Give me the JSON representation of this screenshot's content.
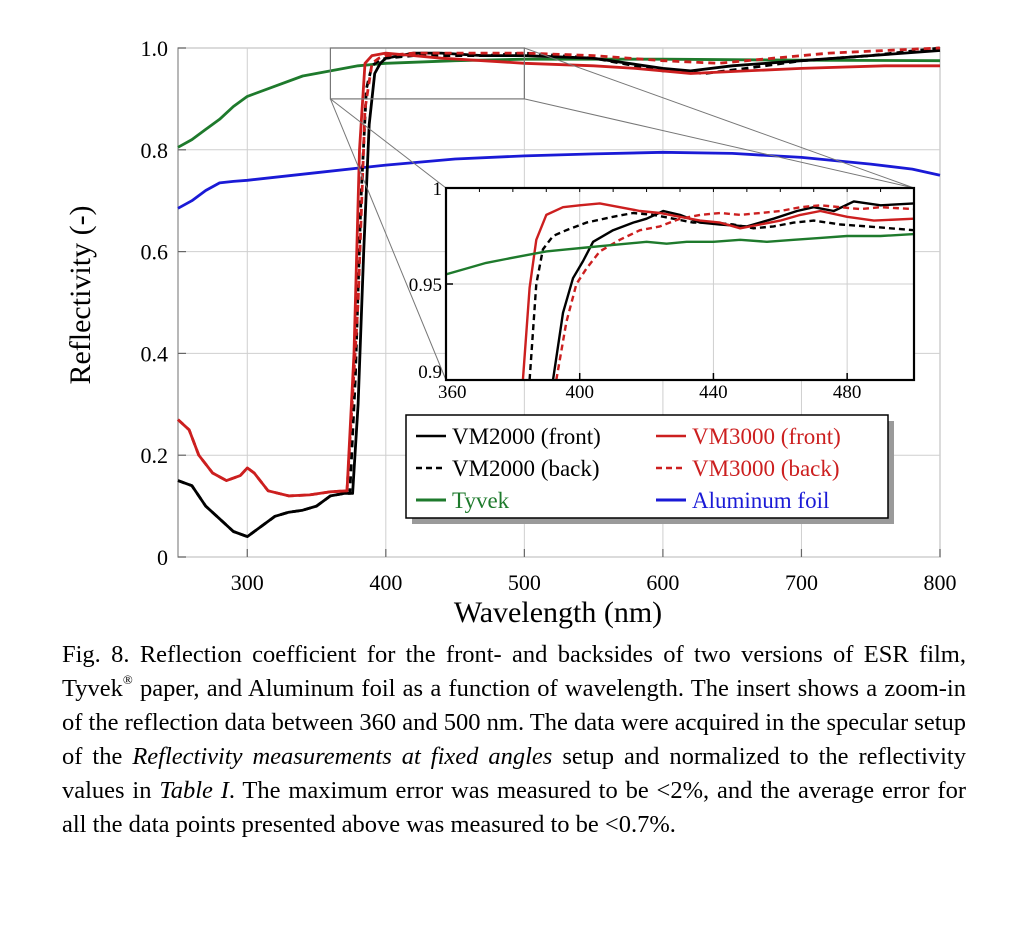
{
  "chart_data": {
    "type": "line",
    "xlabel": "Wavelength (nm)",
    "ylabel": "Reflectivity (-)",
    "xlim": [
      250,
      800
    ],
    "ylim": [
      0,
      1.0
    ],
    "x_ticks": [
      "300",
      "400",
      "500",
      "600",
      "700",
      "800"
    ],
    "y_ticks": [
      "0",
      "0.2",
      "0.4",
      "0.6",
      "0.8",
      "1.0"
    ],
    "grid": true,
    "legend_placement": "lower-right",
    "series": [
      {
        "name": "VM2000 (front)",
        "color": "#000000",
        "dash": "solid",
        "points": [
          [
            250,
            0.15
          ],
          [
            260,
            0.14
          ],
          [
            270,
            0.1
          ],
          [
            280,
            0.075
          ],
          [
            290,
            0.05
          ],
          [
            300,
            0.04
          ],
          [
            310,
            0.06
          ],
          [
            320,
            0.08
          ],
          [
            330,
            0.088
          ],
          [
            340,
            0.092
          ],
          [
            350,
            0.1
          ],
          [
            360,
            0.12
          ],
          [
            370,
            0.125
          ],
          [
            376,
            0.125
          ],
          [
            380,
            0.3
          ],
          [
            384,
            0.6
          ],
          [
            388,
            0.85
          ],
          [
            392,
            0.95
          ],
          [
            396,
            0.97
          ],
          [
            400,
            0.98
          ],
          [
            410,
            0.985
          ],
          [
            420,
            0.99
          ],
          [
            440,
            0.99
          ],
          [
            470,
            0.985
          ],
          [
            500,
            0.985
          ],
          [
            550,
            0.98
          ],
          [
            600,
            0.96
          ],
          [
            620,
            0.955
          ],
          [
            650,
            0.965
          ],
          [
            700,
            0.975
          ],
          [
            750,
            0.985
          ],
          [
            800,
            0.995
          ]
        ]
      },
      {
        "name": "VM2000 (back)",
        "color": "#000000",
        "dash": "dashed",
        "points": [
          [
            250,
            0.15
          ],
          [
            260,
            0.14
          ],
          [
            270,
            0.1
          ],
          [
            280,
            0.075
          ],
          [
            290,
            0.05
          ],
          [
            300,
            0.04
          ],
          [
            310,
            0.06
          ],
          [
            320,
            0.08
          ],
          [
            330,
            0.088
          ],
          [
            340,
            0.092
          ],
          [
            350,
            0.1
          ],
          [
            360,
            0.12
          ],
          [
            370,
            0.125
          ],
          [
            374,
            0.125
          ],
          [
            378,
            0.35
          ],
          [
            382,
            0.7
          ],
          [
            386,
            0.92
          ],
          [
            390,
            0.965
          ],
          [
            395,
            0.975
          ],
          [
            400,
            0.98
          ],
          [
            420,
            0.985
          ],
          [
            440,
            0.985
          ],
          [
            470,
            0.985
          ],
          [
            500,
            0.99
          ],
          [
            550,
            0.98
          ],
          [
            600,
            0.955
          ],
          [
            630,
            0.95
          ],
          [
            660,
            0.96
          ],
          [
            700,
            0.975
          ],
          [
            750,
            0.985
          ],
          [
            800,
            1.0
          ]
        ]
      },
      {
        "name": "VM3000 (front)",
        "color": "#cc1f1f",
        "dash": "solid",
        "points": [
          [
            250,
            0.27
          ],
          [
            258,
            0.25
          ],
          [
            265,
            0.2
          ],
          [
            275,
            0.165
          ],
          [
            285,
            0.15
          ],
          [
            295,
            0.16
          ],
          [
            300,
            0.175
          ],
          [
            305,
            0.165
          ],
          [
            315,
            0.13
          ],
          [
            330,
            0.12
          ],
          [
            345,
            0.122
          ],
          [
            360,
            0.128
          ],
          [
            372,
            0.13
          ],
          [
            377,
            0.4
          ],
          [
            381,
            0.8
          ],
          [
            385,
            0.97
          ],
          [
            390,
            0.985
          ],
          [
            400,
            0.99
          ],
          [
            420,
            0.985
          ],
          [
            440,
            0.98
          ],
          [
            470,
            0.975
          ],
          [
            500,
            0.97
          ],
          [
            550,
            0.965
          ],
          [
            580,
            0.96
          ],
          [
            620,
            0.95
          ],
          [
            660,
            0.955
          ],
          [
            700,
            0.96
          ],
          [
            760,
            0.965
          ],
          [
            800,
            0.965
          ]
        ]
      },
      {
        "name": "VM3000 (back)",
        "color": "#cc1f1f",
        "dash": "dashed",
        "points": [
          [
            250,
            0.27
          ],
          [
            258,
            0.25
          ],
          [
            265,
            0.2
          ],
          [
            275,
            0.165
          ],
          [
            285,
            0.15
          ],
          [
            295,
            0.16
          ],
          [
            300,
            0.175
          ],
          [
            305,
            0.165
          ],
          [
            315,
            0.13
          ],
          [
            330,
            0.12
          ],
          [
            345,
            0.122
          ],
          [
            360,
            0.128
          ],
          [
            372,
            0.13
          ],
          [
            380,
            0.5
          ],
          [
            385,
            0.88
          ],
          [
            390,
            0.97
          ],
          [
            395,
            0.98
          ],
          [
            400,
            0.985
          ],
          [
            420,
            0.99
          ],
          [
            440,
            0.99
          ],
          [
            470,
            0.99
          ],
          [
            500,
            0.99
          ],
          [
            550,
            0.985
          ],
          [
            600,
            0.975
          ],
          [
            640,
            0.97
          ],
          [
            680,
            0.98
          ],
          [
            720,
            0.99
          ],
          [
            760,
            0.995
          ],
          [
            800,
            1.0
          ]
        ]
      },
      {
        "name": "Tyvek",
        "color": "#1e7a2c",
        "dash": "solid",
        "points": [
          [
            250,
            0.805
          ],
          [
            260,
            0.82
          ],
          [
            270,
            0.84
          ],
          [
            280,
            0.86
          ],
          [
            290,
            0.885
          ],
          [
            300,
            0.905
          ],
          [
            320,
            0.925
          ],
          [
            340,
            0.945
          ],
          [
            360,
            0.955
          ],
          [
            380,
            0.965
          ],
          [
            400,
            0.97
          ],
          [
            450,
            0.975
          ],
          [
            500,
            0.978
          ],
          [
            600,
            0.978
          ],
          [
            700,
            0.976
          ],
          [
            800,
            0.975
          ]
        ]
      },
      {
        "name": "Aluminum foil",
        "color": "#1a1ad6",
        "dash": "solid",
        "points": [
          [
            250,
            0.685
          ],
          [
            260,
            0.7
          ],
          [
            270,
            0.72
          ],
          [
            280,
            0.735
          ],
          [
            290,
            0.738
          ],
          [
            300,
            0.74
          ],
          [
            350,
            0.755
          ],
          [
            400,
            0.77
          ],
          [
            450,
            0.782
          ],
          [
            500,
            0.788
          ],
          [
            550,
            0.792
          ],
          [
            600,
            0.795
          ],
          [
            650,
            0.793
          ],
          [
            700,
            0.785
          ],
          [
            750,
            0.772
          ],
          [
            780,
            0.762
          ],
          [
            800,
            0.75
          ]
        ]
      }
    ],
    "inset": {
      "xlim": [
        360,
        500
      ],
      "ylim": [
        0.9,
        1.0
      ],
      "x_ticks": [
        "360",
        "400",
        "440",
        "480"
      ],
      "y_ticks": [
        "0.9",
        "0.95",
        "1"
      ],
      "series": [
        {
          "name": "VM2000 (front)",
          "points": [
            [
              392,
              0.9
            ],
            [
              395,
              0.935
            ],
            [
              398,
              0.953
            ],
            [
              401,
              0.962
            ],
            [
              404,
              0.972
            ],
            [
              410,
              0.978
            ],
            [
              416,
              0.982
            ],
            [
              420,
              0.984
            ],
            [
              425,
              0.988
            ],
            [
              430,
              0.986
            ],
            [
              436,
              0.982
            ],
            [
              442,
              0.981
            ],
            [
              450,
              0.98
            ],
            [
              458,
              0.984
            ],
            [
              465,
              0.988
            ],
            [
              470,
              0.99
            ],
            [
              476,
              0.988
            ],
            [
              482,
              0.993
            ],
            [
              490,
              0.991
            ],
            [
              500,
              0.992
            ]
          ]
        },
        {
          "name": "VM2000 (back)",
          "points": [
            [
              385,
              0.9
            ],
            [
              387,
              0.95
            ],
            [
              389,
              0.968
            ],
            [
              392,
              0.975
            ],
            [
              396,
              0.978
            ],
            [
              402,
              0.982
            ],
            [
              410,
              0.985
            ],
            [
              416,
              0.987
            ],
            [
              422,
              0.986
            ],
            [
              428,
              0.984
            ],
            [
              434,
              0.982
            ],
            [
              440,
              0.982
            ],
            [
              446,
              0.981
            ],
            [
              452,
              0.979
            ],
            [
              458,
              0.98
            ],
            [
              464,
              0.982
            ],
            [
              470,
              0.983
            ],
            [
              478,
              0.981
            ],
            [
              486,
              0.98
            ],
            [
              500,
              0.978
            ]
          ]
        },
        {
          "name": "VM3000 (front)",
          "points": [
            [
              383,
              0.9
            ],
            [
              385,
              0.948
            ],
            [
              387,
              0.973
            ],
            [
              390,
              0.986
            ],
            [
              395,
              0.99
            ],
            [
              400,
              0.991
            ],
            [
              406,
              0.992
            ],
            [
              412,
              0.99
            ],
            [
              418,
              0.988
            ],
            [
              424,
              0.987
            ],
            [
              430,
              0.985
            ],
            [
              436,
              0.983
            ],
            [
              442,
              0.982
            ],
            [
              448,
              0.979
            ],
            [
              454,
              0.981
            ],
            [
              460,
              0.983
            ],
            [
              466,
              0.986
            ],
            [
              472,
              0.988
            ],
            [
              480,
              0.985
            ],
            [
              488,
              0.983
            ],
            [
              500,
              0.984
            ]
          ]
        },
        {
          "name": "VM3000 (back)",
          "points": [
            [
              393,
              0.9
            ],
            [
              396,
              0.93
            ],
            [
              399,
              0.95
            ],
            [
              402,
              0.958
            ],
            [
              406,
              0.967
            ],
            [
              412,
              0.973
            ],
            [
              418,
              0.978
            ],
            [
              424,
              0.98
            ],
            [
              430,
              0.984
            ],
            [
              436,
              0.986
            ],
            [
              442,
              0.987
            ],
            [
              448,
              0.986
            ],
            [
              454,
              0.987
            ],
            [
              460,
              0.988
            ],
            [
              466,
              0.99
            ],
            [
              472,
              0.991
            ],
            [
              478,
              0.99
            ],
            [
              484,
              0.989
            ],
            [
              490,
              0.99
            ],
            [
              500,
              0.989
            ]
          ]
        },
        {
          "name": "Tyvek",
          "points": [
            [
              360,
              0.955
            ],
            [
              366,
              0.958
            ],
            [
              372,
              0.961
            ],
            [
              378,
              0.963
            ],
            [
              384,
              0.965
            ],
            [
              390,
              0.967
            ],
            [
              396,
              0.968
            ],
            [
              402,
              0.969
            ],
            [
              408,
              0.97
            ],
            [
              414,
              0.971
            ],
            [
              420,
              0.972
            ],
            [
              426,
              0.971
            ],
            [
              432,
              0.972
            ],
            [
              440,
              0.972
            ],
            [
              448,
              0.973
            ],
            [
              456,
              0.972
            ],
            [
              464,
              0.973
            ],
            [
              472,
              0.974
            ],
            [
              480,
              0.975
            ],
            [
              490,
              0.975
            ],
            [
              500,
              0.976
            ]
          ]
        }
      ]
    }
  },
  "caption": {
    "part1": "Fig. 8.  Reflection coefficient for the front- and backsides of two versions of ESR film, Tyvek",
    "sup": "®",
    "part2": " paper, and Aluminum foil as a function of wavelength. The insert shows a zoom-in of the reflection data between 360 and 500 nm. The data were acquired in the specular setup of the ",
    "italic1": "Reflectivity measurements at fixed angles",
    "part3": " setup and normalized to the reflectivity values in ",
    "italic2": "Table I",
    "part4": ". The maximum error was measured to be <2%, and the average error for all the data points presented above was measured to be <0.7%."
  }
}
